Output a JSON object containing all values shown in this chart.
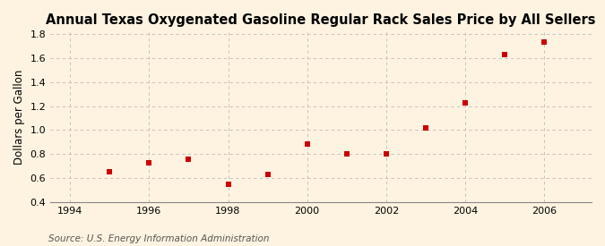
{
  "title": "Annual Texas Oxygenated Gasoline Regular Rack Sales Price by All Sellers",
  "ylabel": "Dollars per Gallon",
  "source": "Source: U.S. Energy Information Administration",
  "years": [
    1995,
    1996,
    1997,
    1998,
    1999,
    2000,
    2001,
    2002,
    2003,
    2004,
    2005,
    2006
  ],
  "values": [
    0.65,
    0.73,
    0.76,
    0.55,
    0.63,
    0.88,
    0.8,
    0.8,
    1.02,
    1.23,
    1.63,
    1.73
  ],
  "xlim": [
    1993.5,
    2007.2
  ],
  "ylim": [
    0.4,
    1.82
  ],
  "yticks": [
    0.4,
    0.6,
    0.8,
    1.0,
    1.2,
    1.4,
    1.6,
    1.8
  ],
  "xticks": [
    1994,
    1996,
    1998,
    2000,
    2002,
    2004,
    2006
  ],
  "marker_color": "#cc0000",
  "marker": "s",
  "marker_size": 4,
  "background_color": "#fdf3e0",
  "grid_color": "#bbbbbb",
  "title_fontsize": 10.5,
  "label_fontsize": 8.5,
  "tick_fontsize": 8,
  "source_fontsize": 7.5
}
